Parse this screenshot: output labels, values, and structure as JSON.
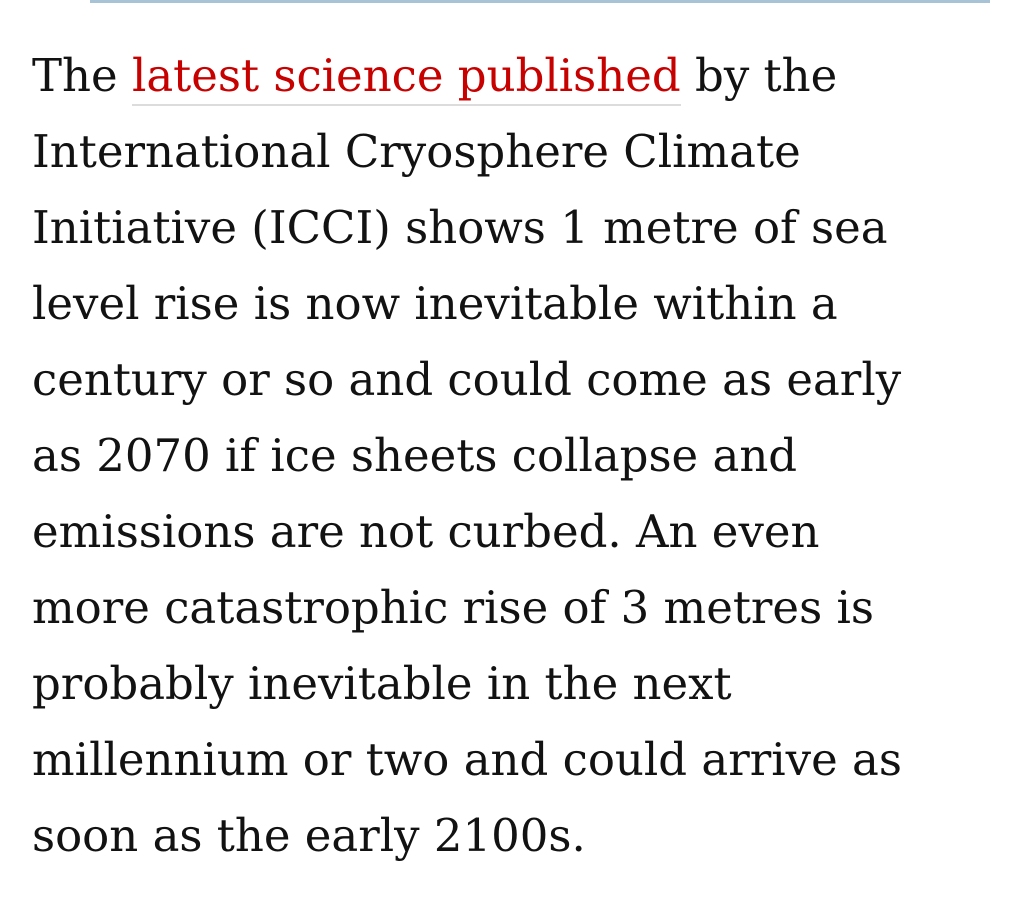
{
  "paragraph": {
    "lead": "The",
    "link": "latest science published",
    "lead_after": "by the",
    "lines": [
      "International Cryosphere Climate",
      "Initiative (ICCI) shows 1 metre of sea",
      "level rise is now inevitable within a",
      "century or so and could come as early",
      "as 2070 if ice sheets collapse and",
      "emissions are not curbed. An even",
      "more catastrophic rise of 3 metres is",
      "probably inevitable in the next",
      "millennium or two and could arrive as",
      "soon as the early 2100s."
    ]
  }
}
